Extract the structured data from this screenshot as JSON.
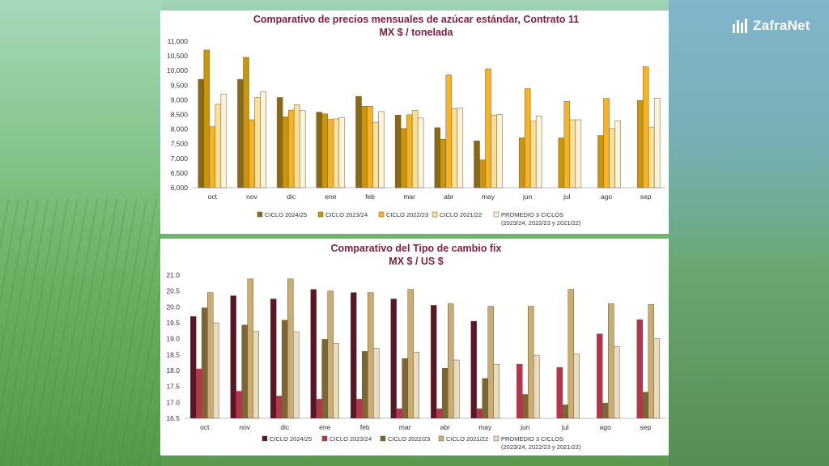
{
  "brand": {
    "name": "ZafraNet",
    "icon": "bar-chart-icon"
  },
  "chart_data": [
    {
      "type": "bar",
      "title": "Comparativo de precios mensuales de azúcar estándar, Contrato 11",
      "subtitle": "MX $ / tonelada",
      "categories": [
        "oct",
        "nov",
        "dic",
        "ene",
        "feb",
        "mar",
        "abr",
        "may",
        "jun",
        "jul",
        "ago",
        "sep"
      ],
      "ylim": [
        6000,
        11000
      ],
      "yticks": [
        6000,
        6500,
        7000,
        7500,
        8000,
        8500,
        9000,
        9500,
        10000,
        10500,
        11000
      ],
      "ytick_labels": [
        "6,000",
        "6,500",
        "7,000",
        "7,500",
        "8,000",
        "8,500",
        "9,000",
        "9,500",
        "10,000",
        "10,500",
        "11,000"
      ],
      "series": [
        {
          "name": "CICLO 2024/25",
          "color": "#8b6914",
          "values": [
            9700,
            9700,
            9080,
            8580,
            9120,
            8480,
            8050,
            7600,
            null,
            null,
            null,
            null
          ]
        },
        {
          "name": "CICLO 2023/24",
          "color": "#c9950b",
          "values": [
            10700,
            10450,
            8420,
            8520,
            8780,
            8020,
            7650,
            6950,
            7700,
            7700,
            7780,
            8980
          ]
        },
        {
          "name": "CICLO 2022/23",
          "color": "#f7b324",
          "values": [
            8080,
            8320,
            8650,
            8330,
            8780,
            8490,
            9850,
            10060,
            9380,
            8950,
            9050,
            10130
          ]
        },
        {
          "name": "CICLO 2021/22",
          "color": "#fbe09a",
          "values": [
            8850,
            9080,
            8830,
            8350,
            8220,
            8640,
            8700,
            8480,
            8270,
            8320,
            8020,
            8070
          ]
        },
        {
          "name": "PROMEDIO 3 CICLOS",
          "name_note": "(2023/24, 2022/23 y 2021/22)",
          "color": "#fdf3d8",
          "values": [
            9200,
            9280,
            8630,
            8400,
            8600,
            8380,
            8730,
            8500,
            8450,
            8320,
            8280,
            9060
          ]
        }
      ],
      "grid": false,
      "legend_position": "bottom"
    },
    {
      "type": "bar",
      "title": "Comparativo del Tipo de cambio fix",
      "subtitle": "MX $ / US $",
      "categories": [
        "oct",
        "nov",
        "dic",
        "ene",
        "feb",
        "mar",
        "abr",
        "may",
        "jun",
        "jul",
        "ago",
        "sep"
      ],
      "ylim": [
        16.5,
        21.0
      ],
      "yticks": [
        16.5,
        17.0,
        17.5,
        18.0,
        18.5,
        19.0,
        19.5,
        20.0,
        20.5,
        21.0
      ],
      "ytick_labels": [
        "16.5",
        "17.0",
        "17.5",
        "18.0",
        "18.5",
        "19.0",
        "19.5",
        "20.0",
        "20.5",
        "21.0"
      ],
      "series": [
        {
          "name": "CICLO 2024/25",
          "color": "#5a1526",
          "values": [
            19.7,
            20.35,
            20.25,
            20.55,
            20.45,
            20.25,
            20.05,
            19.55,
            null,
            null,
            null,
            null
          ]
        },
        {
          "name": "CICLO 2023/24",
          "color": "#b8344e",
          "values": [
            18.05,
            17.35,
            17.2,
            17.1,
            17.1,
            16.8,
            16.8,
            16.8,
            18.2,
            18.1,
            19.15,
            19.6
          ]
        },
        {
          "name": "CICLO 2022/23",
          "color": "#7d6635",
          "values": [
            19.97,
            19.43,
            19.58,
            18.98,
            18.6,
            18.38,
            18.07,
            17.75,
            17.25,
            16.92,
            16.98,
            17.32
          ]
        },
        {
          "name": "CICLO 2021/22",
          "color": "#c9ad72",
          "values": [
            20.45,
            20.88,
            20.88,
            20.5,
            20.45,
            20.55,
            20.1,
            20.02,
            20.02,
            20.55,
            20.1,
            20.08
          ]
        },
        {
          "name": "PROMEDIO 3 CICLOS",
          "name_note": "(2023/24, 2022/23 y 2021/22)",
          "color": "#e8dcc0",
          "values": [
            19.5,
            19.23,
            19.22,
            18.85,
            18.7,
            18.58,
            18.33,
            18.2,
            18.48,
            18.52,
            18.75,
            19.0
          ]
        }
      ],
      "grid": false,
      "legend_position": "bottom"
    }
  ]
}
